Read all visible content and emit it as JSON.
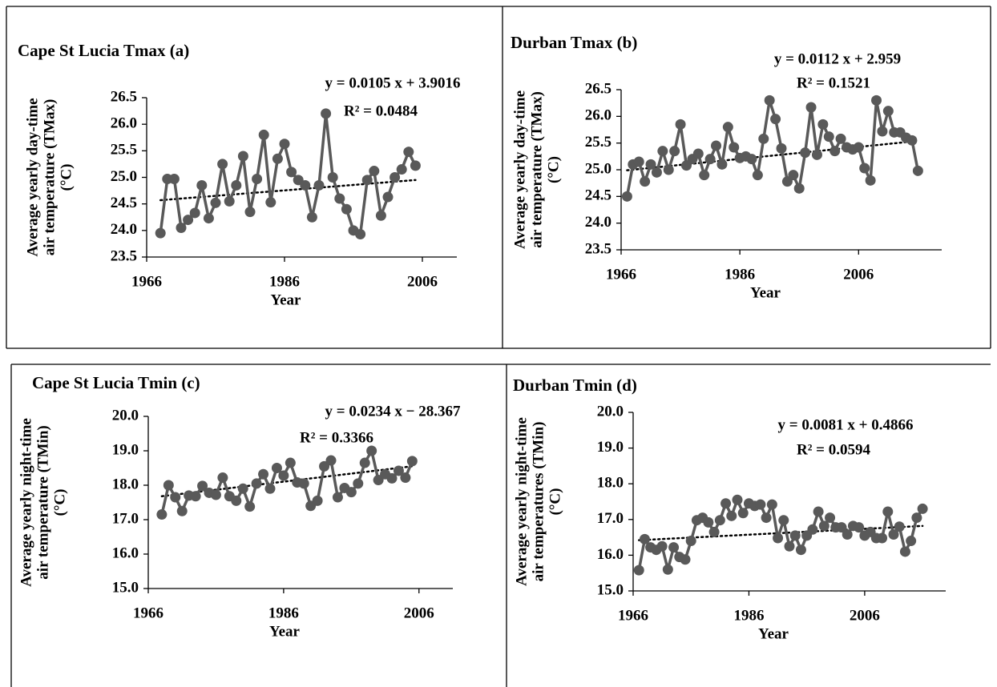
{
  "chart_data": [
    {
      "type": "line",
      "title": "Cape St Lucia Tmax (a)",
      "ylabel": [
        "Average yearly day-time",
        "air temperature (TMax)",
        "(°C)"
      ],
      "xlabel": "Year",
      "annotations": [
        "y = 0.0105 x + 3.9016",
        "R² = 0.0484"
      ],
      "x": [
        1968,
        1969,
        1970,
        1971,
        1972,
        1973,
        1974,
        1975,
        1976,
        1977,
        1978,
        1979,
        1980,
        1981,
        1982,
        1983,
        1984,
        1985,
        1986,
        1987,
        1988,
        1989,
        1990,
        1991,
        1992,
        1993,
        1994,
        1995,
        1996,
        1997,
        1998,
        1999,
        2000,
        2001,
        2002,
        2003,
        2004,
        2005
      ],
      "series": [
        {
          "color": "#595959",
          "values": [
            23.95,
            24.97,
            24.97,
            24.05,
            24.2,
            24.33,
            24.85,
            24.23,
            24.52,
            25.25,
            24.55,
            24.85,
            25.4,
            24.35,
            24.97,
            25.8,
            24.53,
            25.35,
            25.63,
            25.1,
            24.95,
            24.85,
            24.25,
            24.85,
            26.2,
            25.0,
            24.6,
            24.4,
            24.0,
            23.93,
            24.95,
            25.12,
            24.28,
            24.63,
            25.0,
            25.15,
            25.48,
            25.22
          ]
        }
      ],
      "trend": {
        "x": [
          1968,
          2005
        ],
        "values": [
          24.57,
          24.95
        ]
      },
      "xlim": [
        1966,
        2011
      ],
      "xticks": [
        1966,
        1986,
        2006
      ],
      "ylim": [
        23.5,
        26.5
      ],
      "yticks": [
        23.5,
        {
          "value": 24,
          "label": "24.0"
        },
        24.5,
        {
          "value": 25,
          "label": "25.0"
        },
        25.5,
        {
          "value": 26,
          "label": "26.0"
        },
        26.5
      ]
    },
    {
      "type": "line",
      "title": "Durban Tmax (b)",
      "ylabel": [
        "Average yearly  day-time",
        "air  temperature  (TMax)",
        "(°C)"
      ],
      "xlabel": "Year",
      "annotations": [
        "y = 0.0112 x + 2.959",
        "R² = 0.1521"
      ],
      "x": [
        1967,
        1968,
        1969,
        1970,
        1971,
        1972,
        1973,
        1974,
        1975,
        1976,
        1977,
        1978,
        1979,
        1980,
        1981,
        1982,
        1983,
        1984,
        1985,
        1986,
        1987,
        1988,
        1989,
        1990,
        1991,
        1992,
        1993,
        1994,
        1995,
        1996,
        1997,
        1998,
        1999,
        2000,
        2001,
        2002,
        2003,
        2004,
        2005,
        2006,
        2007,
        2008,
        2009,
        2010,
        2011,
        2012,
        2013,
        2014,
        2015,
        2016
      ],
      "series": [
        {
          "color": "#595959",
          "values": [
            24.5,
            25.1,
            25.15,
            24.78,
            25.1,
            24.95,
            25.35,
            25.0,
            25.35,
            25.85,
            25.08,
            25.2,
            25.3,
            24.9,
            25.2,
            25.45,
            25.1,
            25.8,
            25.42,
            25.22,
            25.25,
            25.2,
            24.9,
            25.58,
            26.3,
            25.95,
            25.4,
            24.78,
            24.9,
            24.65,
            25.32,
            26.17,
            25.28,
            25.85,
            25.62,
            25.35,
            25.58,
            25.42,
            25.38,
            25.42,
            25.03,
            24.8,
            26.3,
            25.72,
            26.1,
            25.7,
            25.7,
            25.6,
            25.55,
            24.98
          ]
        }
      ],
      "trend": {
        "x": [
          1967,
          2016
        ],
        "values": [
          24.99,
          25.54
        ]
      },
      "xlim": [
        1966,
        2020
      ],
      "xticks": [
        1966,
        1986,
        2006
      ],
      "ylim": [
        23.5,
        26.5
      ],
      "yticks": [
        23.5,
        {
          "value": 24,
          "label": "24.0"
        },
        24.5,
        {
          "value": 25,
          "label": "25.0"
        },
        25.5,
        {
          "value": 26,
          "label": "26.0"
        },
        26.5
      ]
    },
    {
      "type": "line",
      "title": "Cape St Lucia Tmin (c)",
      "ylabel": [
        "Average yearly night-time",
        "air temperature (TMin)",
        "(°C)"
      ],
      "xlabel": "Year",
      "annotations": [
        "y = 0.0234 x − 28.367",
        "R² = 0.3366"
      ],
      "x": [
        1968,
        1969,
        1970,
        1971,
        1972,
        1973,
        1974,
        1975,
        1976,
        1977,
        1978,
        1979,
        1980,
        1981,
        1982,
        1983,
        1984,
        1985,
        1986,
        1987,
        1988,
        1989,
        1990,
        1991,
        1992,
        1993,
        1994,
        1995,
        1996,
        1997,
        1998,
        1999,
        2000,
        2001,
        2002,
        2003,
        2004,
        2005
      ],
      "series": [
        {
          "color": "#595959",
          "values": [
            17.15,
            18.0,
            17.65,
            17.25,
            17.7,
            17.68,
            17.98,
            17.78,
            17.72,
            18.22,
            17.68,
            17.55,
            17.9,
            17.38,
            18.05,
            18.32,
            17.9,
            18.5,
            18.28,
            18.65,
            18.08,
            18.05,
            17.4,
            17.55,
            18.55,
            18.72,
            17.65,
            17.92,
            17.8,
            18.05,
            18.65,
            19.0,
            18.15,
            18.32,
            18.2,
            18.42,
            18.22,
            18.7
          ]
        }
      ],
      "trend": {
        "x": [
          1968,
          2005
        ],
        "values": [
          17.68,
          18.55
        ]
      },
      "xlim": [
        1966,
        2011
      ],
      "xticks": [
        1966,
        1986,
        2006
      ],
      "ylim": [
        15,
        20
      ],
      "yticks": [
        {
          "value": 15,
          "label": "15.0"
        },
        {
          "value": 16,
          "label": "16.0"
        },
        {
          "value": 17,
          "label": "17.0"
        },
        {
          "value": 18,
          "label": "18.0"
        },
        {
          "value": 19,
          "label": "19.0"
        },
        {
          "value": 20,
          "label": "20.0"
        }
      ]
    },
    {
      "type": "line",
      "title": "Durban Tmin (d)",
      "ylabel": [
        "Average yearly night-time",
        "air temperatures (TMin)",
        "(°C)"
      ],
      "xlabel": "Year",
      "annotations": [
        "y = 0.0081 x + 0.4866",
        "R² = 0.0594"
      ],
      "x": [
        1967,
        1968,
        1969,
        1970,
        1971,
        1972,
        1973,
        1974,
        1975,
        1976,
        1977,
        1978,
        1979,
        1980,
        1981,
        1982,
        1983,
        1984,
        1985,
        1986,
        1987,
        1988,
        1989,
        1990,
        1991,
        1992,
        1993,
        1994,
        1995,
        1996,
        1997,
        1998,
        1999,
        2000,
        2001,
        2002,
        2003,
        2004,
        2005,
        2006,
        2007,
        2008,
        2009,
        2010,
        2011,
        2012,
        2013,
        2014,
        2015,
        2016
      ],
      "series": [
        {
          "color": "#595959",
          "values": [
            15.58,
            16.45,
            16.22,
            16.15,
            16.25,
            15.6,
            16.22,
            15.95,
            15.88,
            16.4,
            16.98,
            17.05,
            16.92,
            16.65,
            16.98,
            17.45,
            17.1,
            17.55,
            17.18,
            17.45,
            17.38,
            17.42,
            17.05,
            17.42,
            16.48,
            16.98,
            16.25,
            16.55,
            16.15,
            16.55,
            16.72,
            17.22,
            16.82,
            17.05,
            16.78,
            16.78,
            16.58,
            16.82,
            16.78,
            16.55,
            16.65,
            16.48,
            16.48,
            17.22,
            16.58,
            16.8,
            16.1,
            16.4,
            17.05,
            17.3
          ]
        }
      ],
      "trend": {
        "x": [
          1967,
          2016
        ],
        "values": [
          16.42,
          16.82
        ]
      },
      "xlim": [
        1966,
        2020
      ],
      "xticks": [
        1966,
        1986,
        2006
      ],
      "ylim": [
        15,
        20
      ],
      "yticks": [
        {
          "value": 15,
          "label": "15.0"
        },
        {
          "value": 16,
          "label": "16.0"
        },
        {
          "value": 17,
          "label": "17.0"
        },
        {
          "value": 18,
          "label": "18.0"
        },
        {
          "value": 19,
          "label": "19.0"
        },
        {
          "value": 20,
          "label": "20.0"
        }
      ]
    }
  ]
}
